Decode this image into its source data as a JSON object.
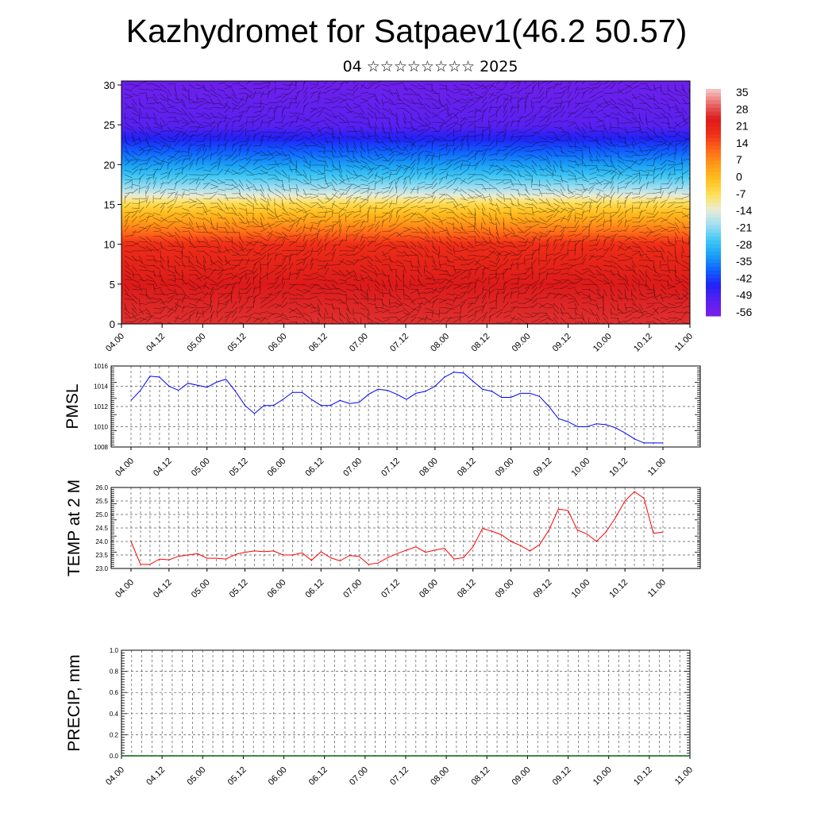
{
  "header": {
    "title": "Kazhydromet for Satpaev1(46.2 50.57)",
    "subtitle": "04 ☆☆☆☆☆☆☆☆ 2025"
  },
  "chart_data": [
    {
      "type": "heatmap",
      "name": "temperature-wind-cross-section",
      "x_tick_labels": [
        "04.00",
        "04.12",
        "05.00",
        "05.12",
        "06.00",
        "06.12",
        "07.00",
        "07.12",
        "08.00",
        "08.12",
        "09.00",
        "09.12",
        "10.00",
        "10.12",
        "11.00"
      ],
      "y_tick_labels": [
        "0",
        "5",
        "10",
        "15",
        "20",
        "25",
        "30"
      ],
      "ylim": [
        0,
        30.5
      ],
      "colorbar_labels": [
        "35",
        "28",
        "21",
        "14",
        "7",
        "0",
        "-7",
        "-14",
        "-21",
        "-28",
        "-35",
        "-42",
        "-49",
        "-56"
      ],
      "colorbar_range": [
        -63,
        42
      ],
      "layers_description_values": {
        "heights": [
          0,
          5,
          10,
          15,
          17,
          20,
          25,
          30
        ],
        "values": [
          30,
          28,
          22,
          -5,
          -20,
          -35,
          -56,
          -60
        ]
      },
      "barbs": true
    },
    {
      "type": "line",
      "ylabel": "PMSL",
      "y_tick_labels": [
        "1008",
        "1010",
        "1012",
        "1014",
        "1016"
      ],
      "ylim": [
        1008,
        1016
      ],
      "x_tick_labels": [
        "04.00",
        "04.12",
        "05.00",
        "05.12",
        "06.00",
        "06.12",
        "07.00",
        "07.12",
        "08.00",
        "08.12",
        "09.00",
        "09.12",
        "10.00",
        "10.12",
        "11.00"
      ],
      "color": "#0000ff",
      "values": [
        1012.6,
        1013.6,
        1015.0,
        1014.9,
        1014.0,
        1013.6,
        1014.3,
        1014.1,
        1013.9,
        1014.4,
        1014.7,
        1013.5,
        1012.1,
        1011.3,
        1012.1,
        1012.1,
        1012.7,
        1013.4,
        1013.4,
        1012.7,
        1012.1,
        1012.1,
        1012.6,
        1012.3,
        1012.4,
        1013.2,
        1013.7,
        1013.6,
        1013.2,
        1012.7,
        1013.3,
        1013.5,
        1014.0,
        1014.9,
        1015.4,
        1015.3,
        1014.5,
        1013.7,
        1013.5,
        1012.9,
        1012.9,
        1013.3,
        1013.3,
        1013.0,
        1012.0,
        1010.8,
        1010.5,
        1010.0,
        1010.0,
        1010.3,
        1010.2,
        1009.9,
        1009.4,
        1008.8,
        1008.4,
        1008.4,
        1008.4
      ]
    },
    {
      "type": "line",
      "ylabel": "TEMP at 2 M",
      "y_tick_labels": [
        "23.0",
        "23.5",
        "24.0",
        "24.5",
        "25.0",
        "25.5",
        "26.0"
      ],
      "ylim": [
        23.0,
        26.0
      ],
      "x_tick_labels": [
        "04.00",
        "04.12",
        "05.00",
        "05.12",
        "06.00",
        "06.12",
        "07.00",
        "07.12",
        "08.00",
        "08.12",
        "09.00",
        "09.12",
        "10.00",
        "10.12",
        "11.00"
      ],
      "color": "#ff0000",
      "values": [
        24.0,
        23.15,
        23.15,
        23.35,
        23.32,
        23.45,
        23.5,
        23.55,
        23.38,
        23.38,
        23.35,
        23.52,
        23.6,
        23.65,
        23.62,
        23.65,
        23.5,
        23.5,
        23.58,
        23.3,
        23.62,
        23.4,
        23.28,
        23.48,
        23.45,
        23.15,
        23.2,
        23.4,
        23.55,
        23.68,
        23.8,
        23.6,
        23.68,
        23.75,
        23.35,
        23.4,
        23.8,
        24.48,
        24.38,
        24.25,
        24.0,
        23.85,
        23.65,
        23.88,
        24.42,
        25.2,
        25.15,
        24.42,
        24.28,
        24.0,
        24.35,
        24.88,
        25.5,
        25.85,
        25.6,
        24.3,
        24.35
      ]
    },
    {
      "type": "line",
      "ylabel": "PRECIP, mm",
      "y_tick_labels": [
        "0.0",
        "0.2",
        "0.4",
        "0.6",
        "0.8",
        "1.0"
      ],
      "ylim": [
        0,
        1.0
      ],
      "x_tick_labels": [
        "04.00",
        "04.12",
        "05.00",
        "05.12",
        "06.00",
        "06.12",
        "07.00",
        "07.12",
        "08.00",
        "08.12",
        "09.00",
        "09.12",
        "10.00",
        "10.12",
        "11.00"
      ],
      "color": "#006400",
      "values": [
        0,
        0,
        0,
        0,
        0,
        0,
        0,
        0,
        0,
        0,
        0,
        0,
        0,
        0,
        0,
        0,
        0,
        0,
        0,
        0,
        0,
        0,
        0,
        0,
        0,
        0,
        0,
        0,
        0,
        0,
        0,
        0,
        0,
        0,
        0,
        0,
        0,
        0,
        0,
        0,
        0,
        0,
        0,
        0,
        0,
        0,
        0,
        0,
        0,
        0,
        0,
        0,
        0,
        0,
        0,
        0,
        0
      ]
    }
  ]
}
